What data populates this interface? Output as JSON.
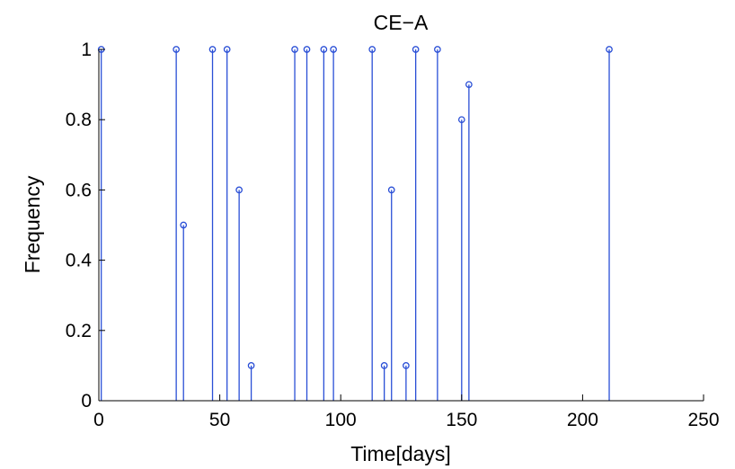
{
  "chart_data": {
    "type": "stem",
    "title": "CE−A",
    "xlabel": "Time[days]",
    "ylabel": "Frequency",
    "xlim": [
      0,
      250
    ],
    "ylim": [
      0,
      1
    ],
    "xticks": [
      0,
      50,
      100,
      150,
      200,
      250
    ],
    "yticks": [
      0,
      0.2,
      0.4,
      0.6,
      0.8,
      1
    ],
    "xtick_labels": [
      "0",
      "50",
      "100",
      "150",
      "200",
      "250"
    ],
    "ytick_labels": [
      "0",
      "0.2",
      "0.4",
      "0.6",
      "0.8",
      "1"
    ],
    "grid": false,
    "marker": "circle",
    "series_color": "#2a4fd6",
    "points": [
      {
        "x": 1,
        "y": 1
      },
      {
        "x": 32,
        "y": 1
      },
      {
        "x": 35,
        "y": 0.5
      },
      {
        "x": 47,
        "y": 1
      },
      {
        "x": 53,
        "y": 1
      },
      {
        "x": 58,
        "y": 0.6
      },
      {
        "x": 63,
        "y": 0.1
      },
      {
        "x": 81,
        "y": 1
      },
      {
        "x": 86,
        "y": 1
      },
      {
        "x": 93,
        "y": 1
      },
      {
        "x": 97,
        "y": 1
      },
      {
        "x": 113,
        "y": 1
      },
      {
        "x": 118,
        "y": 0.1
      },
      {
        "x": 121,
        "y": 0.6
      },
      {
        "x": 127,
        "y": 0.1
      },
      {
        "x": 131,
        "y": 1
      },
      {
        "x": 140,
        "y": 1
      },
      {
        "x": 150,
        "y": 0.8
      },
      {
        "x": 153,
        "y": 0.9
      },
      {
        "x": 211,
        "y": 1
      }
    ]
  }
}
